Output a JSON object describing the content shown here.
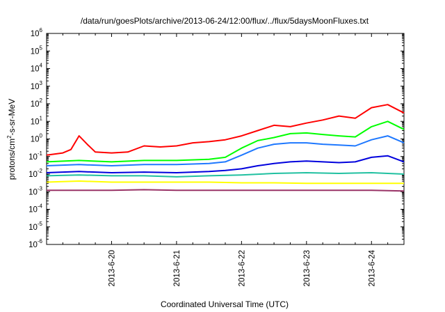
{
  "chart_data": {
    "type": "line",
    "title": "/data/run/goesPlots/archive/2013-06-24/12:00/flux/../flux/5daysMoonFluxes.txt",
    "xlabel": "Coordinated Universal Time (UTC)",
    "ylabel": "protons/cm2-s-sr-MeV",
    "ylabel_parts": {
      "base": "protons/cm",
      "sup": "2",
      "rest": "-s-sr-MeV"
    },
    "y_scale": "log",
    "ylim": [
      1e-06,
      1000000.0
    ],
    "y_ticks": [
      {
        "exp": -6,
        "base": "10",
        "sup": "-6"
      },
      {
        "exp": -5,
        "base": "10",
        "sup": "-5"
      },
      {
        "exp": -4,
        "base": "10",
        "sup": "-4"
      },
      {
        "exp": -3,
        "base": "10",
        "sup": "-3"
      },
      {
        "exp": -2,
        "base": "10",
        "sup": "-2"
      },
      {
        "exp": -1,
        "base": "10",
        "sup": "-1"
      },
      {
        "exp": 0,
        "base": "10",
        "sup": "0"
      },
      {
        "exp": 1,
        "base": "10",
        "sup": "1"
      },
      {
        "exp": 2,
        "base": "10",
        "sup": "2"
      },
      {
        "exp": 3,
        "base": "10",
        "sup": "3"
      },
      {
        "exp": 4,
        "base": "10",
        "sup": "4"
      },
      {
        "exp": 5,
        "base": "10",
        "sup": "5"
      },
      {
        "exp": 6,
        "base": "10",
        "sup": "6"
      }
    ],
    "xlim": [
      "2013-06-19 00:00",
      "2013-06-24 12:00"
    ],
    "x_ticks": [
      "2013-6-20",
      "2013-6-21",
      "2013-6-22",
      "2013-6-23",
      "2013-6-24"
    ],
    "grid": false,
    "series": [
      {
        "color": "#ff0000",
        "x": [
          "2013-06-19 00:00",
          "2013-06-19 06:00",
          "2013-06-19 09:00",
          "2013-06-19 12:00",
          "2013-06-19 15:00",
          "2013-06-19 18:00",
          "2013-06-20 00:00",
          "2013-06-20 06:00",
          "2013-06-20 12:00",
          "2013-06-20 18:00",
          "2013-06-21 00:00",
          "2013-06-21 06:00",
          "2013-06-21 12:00",
          "2013-06-21 18:00",
          "2013-06-22 00:00",
          "2013-06-22 06:00",
          "2013-06-22 12:00",
          "2013-06-22 18:00",
          "2013-06-23 00:00",
          "2013-06-23 06:00",
          "2013-06-23 12:00",
          "2013-06-23 18:00",
          "2013-06-24 00:00",
          "2013-06-24 06:00",
          "2013-06-24 12:00"
        ],
        "values": [
          0.12,
          0.16,
          0.25,
          1.5,
          0.5,
          0.18,
          0.16,
          0.18,
          0.4,
          0.35,
          0.4,
          0.6,
          0.7,
          0.9,
          1.5,
          3,
          6,
          5,
          8,
          12,
          20,
          15,
          60,
          90,
          30
        ]
      },
      {
        "color": "#00ff00",
        "x": [
          "2013-06-19 00:00",
          "2013-06-19 12:00",
          "2013-06-20 00:00",
          "2013-06-20 12:00",
          "2013-06-21 00:00",
          "2013-06-21 12:00",
          "2013-06-21 18:00",
          "2013-06-22 00:00",
          "2013-06-22 06:00",
          "2013-06-22 12:00",
          "2013-06-22 18:00",
          "2013-06-23 00:00",
          "2013-06-23 06:00",
          "2013-06-23 12:00",
          "2013-06-23 18:00",
          "2013-06-24 00:00",
          "2013-06-24 06:00",
          "2013-06-24 12:00"
        ],
        "values": [
          0.05,
          0.06,
          0.05,
          0.06,
          0.06,
          0.07,
          0.09,
          0.3,
          0.8,
          1.2,
          2,
          2.2,
          1.8,
          1.5,
          1.3,
          5,
          10,
          3.5
        ]
      },
      {
        "color": "#1e78ff",
        "x": [
          "2013-06-19 00:00",
          "2013-06-19 12:00",
          "2013-06-20 00:00",
          "2013-06-20 12:00",
          "2013-06-21 00:00",
          "2013-06-21 12:00",
          "2013-06-21 18:00",
          "2013-06-22 00:00",
          "2013-06-22 06:00",
          "2013-06-22 12:00",
          "2013-06-22 18:00",
          "2013-06-23 00:00",
          "2013-06-23 06:00",
          "2013-06-23 12:00",
          "2013-06-23 18:00",
          "2013-06-24 00:00",
          "2013-06-24 06:00",
          "2013-06-24 12:00"
        ],
        "values": [
          0.03,
          0.035,
          0.03,
          0.035,
          0.035,
          0.04,
          0.05,
          0.12,
          0.3,
          0.5,
          0.6,
          0.6,
          0.5,
          0.45,
          0.4,
          0.9,
          1.5,
          0.6
        ]
      },
      {
        "color": "#0000dd",
        "x": [
          "2013-06-19 00:00",
          "2013-06-19 12:00",
          "2013-06-20 00:00",
          "2013-06-20 12:00",
          "2013-06-21 00:00",
          "2013-06-21 12:00",
          "2013-06-21 18:00",
          "2013-06-22 00:00",
          "2013-06-22 06:00",
          "2013-06-22 12:00",
          "2013-06-22 18:00",
          "2013-06-23 00:00",
          "2013-06-23 06:00",
          "2013-06-23 12:00",
          "2013-06-23 18:00",
          "2013-06-24 00:00",
          "2013-06-24 06:00",
          "2013-06-24 12:00"
        ],
        "values": [
          0.012,
          0.014,
          0.012,
          0.013,
          0.012,
          0.014,
          0.016,
          0.02,
          0.03,
          0.04,
          0.05,
          0.055,
          0.05,
          0.045,
          0.05,
          0.09,
          0.11,
          0.05
        ]
      },
      {
        "color": "#20c0a0",
        "x": [
          "2013-06-19 00:00",
          "2013-06-19 12:00",
          "2013-06-20 00:00",
          "2013-06-20 12:00",
          "2013-06-21 00:00",
          "2013-06-21 12:00",
          "2013-06-22 00:00",
          "2013-06-22 12:00",
          "2013-06-23 00:00",
          "2013-06-23 12:00",
          "2013-06-24 00:00",
          "2013-06-24 12:00"
        ],
        "values": [
          0.008,
          0.009,
          0.008,
          0.008,
          0.007,
          0.008,
          0.009,
          0.011,
          0.012,
          0.011,
          0.012,
          0.01
        ]
      },
      {
        "color": "#ffff00",
        "x": [
          "2013-06-19 00:00",
          "2013-06-19 12:00",
          "2013-06-20 00:00",
          "2013-06-20 12:00",
          "2013-06-21 00:00",
          "2013-06-21 12:00",
          "2013-06-22 00:00",
          "2013-06-22 12:00",
          "2013-06-23 00:00",
          "2013-06-23 12:00",
          "2013-06-24 00:00",
          "2013-06-24 12:00"
        ],
        "values": [
          0.0035,
          0.004,
          0.0035,
          0.0035,
          0.0035,
          0.0035,
          0.0032,
          0.0032,
          0.003,
          0.003,
          0.003,
          0.003
        ]
      },
      {
        "color": "#993366",
        "x": [
          "2013-06-19 00:00",
          "2013-06-19 12:00",
          "2013-06-20 00:00",
          "2013-06-20 12:00",
          "2013-06-21 00:00",
          "2013-06-21 12:00",
          "2013-06-22 00:00",
          "2013-06-22 12:00",
          "2013-06-23 00:00",
          "2013-06-23 12:00",
          "2013-06-24 00:00",
          "2013-06-24 12:00"
        ],
        "values": [
          0.0012,
          0.0012,
          0.0012,
          0.0013,
          0.0012,
          0.0012,
          0.0012,
          0.0012,
          0.0012,
          0.0012,
          0.0012,
          0.0011
        ]
      }
    ]
  }
}
